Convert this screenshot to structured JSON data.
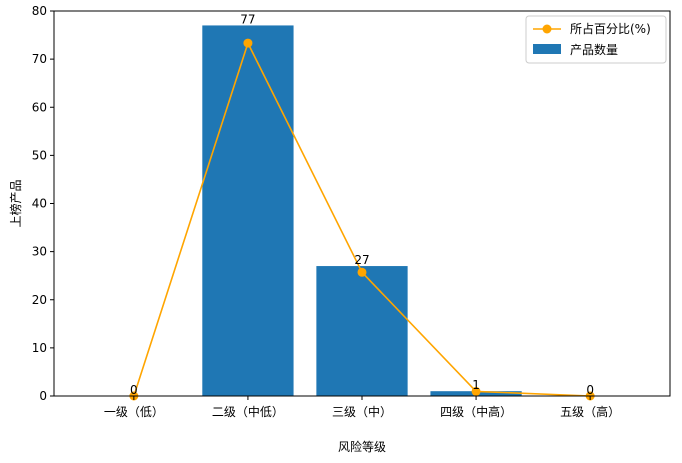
{
  "chart_data": {
    "type": "bar",
    "categories": [
      "一级（低）",
      "二级（中低）",
      "三级（中）",
      "四级（中高）",
      "五级（高）"
    ],
    "series": [
      {
        "name": "产品数量",
        "type": "bar",
        "values": [
          0,
          77,
          27,
          1,
          0
        ],
        "color": "#1f77b4"
      },
      {
        "name": "所占百分比(%)",
        "type": "line",
        "values": [
          0,
          73.33,
          25.71,
          0.95,
          0
        ],
        "color": "#ffa500",
        "marker": "circle"
      }
    ],
    "data_labels": [
      "0",
      "77",
      "27",
      "1",
      "0"
    ],
    "xlabel": "风险等级",
    "ylabel": "上榜产品",
    "ylim": [
      0,
      80
    ],
    "yticks": [
      0,
      10,
      20,
      30,
      40,
      50,
      60,
      70,
      80
    ],
    "grid": false,
    "legend_position": "top-right"
  }
}
